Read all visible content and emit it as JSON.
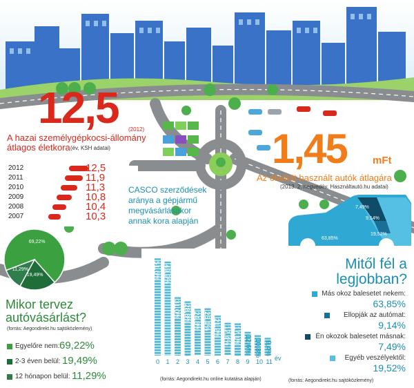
{
  "stat_age": {
    "value": "12,5",
    "year": "(2012)",
    "title_line1": "A hazai személygépkocsi-állomány",
    "title_line2": "átlagos életkora",
    "source": "(év, KSH adatai)",
    "rows": [
      {
        "year": "2012",
        "value": "12,5"
      },
      {
        "year": "2011",
        "value": "11,9"
      },
      {
        "year": "2010",
        "value": "11,3"
      },
      {
        "year": "2009",
        "value": "10,8"
      },
      {
        "year": "2008",
        "value": "10,4"
      },
      {
        "year": "2007",
        "value": "10,3"
      }
    ]
  },
  "stat_price": {
    "value": "1,45",
    "unit": "mFt",
    "title": "Az eladott használt autók átlagára",
    "source": "(2013. 2. negyedév, Használtautó.hu adatai)"
  },
  "casco": {
    "title_line1": "CASCO szerződések",
    "title_line2": "aránya a gépjármű",
    "title_line3": "megvásárlásakor",
    "title_line4": "annak kora alapján",
    "source": "(forrás: Aegondirekt.hu online kutatása alapján)"
  },
  "chart_data": [
    {
      "type": "bar",
      "categories": [
        "0",
        "1",
        "2",
        "3",
        "4",
        "5",
        "6",
        "7",
        "8",
        "9",
        "10",
        "11"
      ],
      "values": [
        51.6,
        49.9,
        31.0,
        28.8,
        24.8,
        25.1,
        21.2,
        17.4,
        17.1,
        12.6,
        10.8,
        9.4
      ],
      "labels": [
        "51,6%",
        "49,9%",
        "31,0%",
        "28,8%",
        "24,8%",
        "25,1%",
        "21,2%",
        "17,4%",
        "17,1%",
        "12,6%",
        "10,8%",
        "9,4%"
      ],
      "xlabel": "év",
      "color": "#4db8d8"
    },
    {
      "type": "pie",
      "categories": [
        "Egyelőre nem",
        "2-3 éven belül",
        "12 hónapon belül"
      ],
      "values": [
        69.22,
        19.49,
        11.29
      ],
      "labels": [
        "69,22%",
        "19,49%",
        "11,29%"
      ],
      "colors": [
        "#3aa040",
        "#1f6e3a",
        "#2f7d4a"
      ]
    },
    {
      "type": "pie",
      "categories": [
        "Más okoz balesetet nekem",
        "Ellopják az autómat",
        "Én okozok balesetet másnak",
        "Egyéb veszélyektől"
      ],
      "values": [
        63.85,
        9.14,
        7.49,
        19.52
      ],
      "labels": [
        "63,85%",
        "9,14%",
        "7,49%",
        "19,52%"
      ],
      "colors": [
        "#2fa8d4",
        "#1a6f96",
        "#0f4a66",
        "#55c0e4"
      ]
    }
  ],
  "plan": {
    "title_line1": "Mikor tervez",
    "title_line2": "autóvásárlást?",
    "source": "(forrás: Aegondirekt.hu sajtóközlemény)",
    "items": [
      {
        "label": "Egyelőre nem:",
        "value": "69,22%"
      },
      {
        "label": "2-3 éven belül:",
        "value": "19,49%"
      },
      {
        "label": "12 hónapon belül:",
        "value": "11,29%"
      }
    ]
  },
  "fear": {
    "title_line1": "Mitől fél a",
    "title_line2": "legjobban?",
    "source": "(forrás: Aegondirekt.hu sajtóközlemény)",
    "items": [
      {
        "label": "Más okoz balesetet nekem:",
        "value": "63,85%"
      },
      {
        "label": "Ellopják az autómat:",
        "value": "9,14%"
      },
      {
        "label": "Én okozok balesetet másnak:",
        "value": "7,49%"
      },
      {
        "label": "Egyéb veszélyektől:",
        "value": "19,52%"
      }
    ]
  },
  "colors": {
    "red": "#d9281c",
    "orange": "#f07c1a",
    "teal": "#1a8fb3",
    "green": "#2c8a3a",
    "road": "#8a8d90",
    "building": "#3a72c8",
    "sky": "#e6f2fb"
  }
}
